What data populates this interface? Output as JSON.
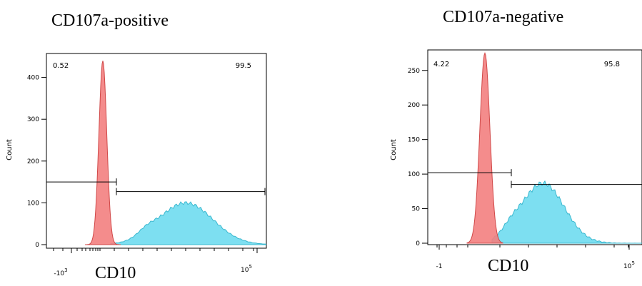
{
  "chart_data": [
    {
      "type": "area",
      "title": "CD107a-positive",
      "xlabel": "CD10",
      "ylabel": "Count",
      "xscale": "biexponential",
      "ylim": [
        0,
        450
      ],
      "y_ticks": [
        "0",
        "100",
        "200",
        "300",
        "400"
      ],
      "x_ticks": [
        {
          "base": "-10",
          "exp": "3"
        },
        {
          "base": "10",
          "exp": "5"
        }
      ],
      "gates": [
        {
          "label": "0.52",
          "count": 150
        },
        {
          "label": "99.5",
          "count": 127
        }
      ],
      "series": [
        {
          "color": "#f37f7f",
          "peak_count": 440
        },
        {
          "color": "#66d9ee",
          "peak_count": 100
        }
      ]
    },
    {
      "type": "area",
      "title": "CD107a-negative",
      "xlabel": "CD10",
      "ylabel": "Count",
      "xscale": "biexponential",
      "ylim": [
        0,
        280
      ],
      "y_ticks": [
        "0",
        "50",
        "100",
        "150",
        "200",
        "250"
      ],
      "x_ticks": [
        {
          "base": "-1",
          "exp": ""
        },
        {
          "base": "10",
          "exp": "5"
        }
      ],
      "gates": [
        {
          "label": "4.22",
          "count": 102
        },
        {
          "label": "95.8",
          "count": 85
        }
      ],
      "series": [
        {
          "color": "#f37f7f",
          "peak_count": 275
        },
        {
          "color": "#66d9ee",
          "peak_count": 87
        }
      ]
    }
  ]
}
